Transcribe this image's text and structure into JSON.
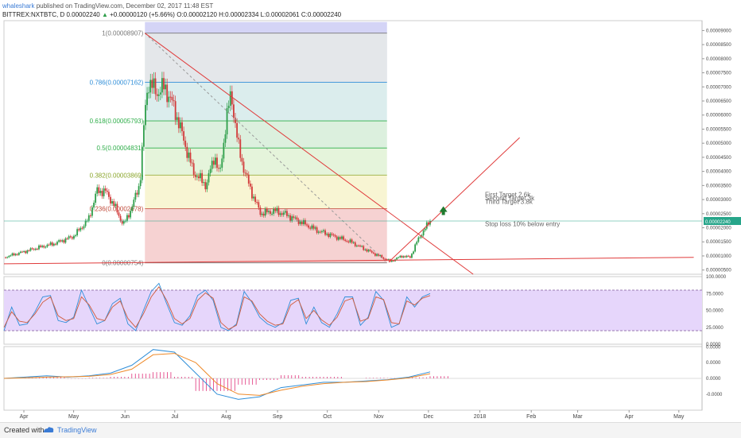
{
  "header": {
    "user": "whaleshark",
    "published": "published on TradingView.com, December 02, 2017 11:48 EST",
    "symbol": "BITTREX:NXTBTC, D",
    "last": "0.00002240",
    "change": "+0.00000120 (+5.66%)",
    "open_label": "O:",
    "open": "0.00002120",
    "high_label": "H:",
    "high": "0.00002334",
    "low_label": "L:",
    "low": "0.00002061",
    "close_label": "C:",
    "close": "0.00002240"
  },
  "footer": {
    "created_with": "Created with",
    "brand": "TradingView"
  },
  "colors": {
    "up": "#2e9e4a",
    "down": "#d23a3a",
    "trendline": "#e03b3b",
    "stoch_k": "#2f8ed8",
    "stoch_d": "#d05a3a",
    "macd": "#2f8ed8",
    "signal": "#ee8a2a",
    "hist": "#e0307a",
    "last_price_tag": "#27a58a"
  },
  "chart_data": [
    {
      "type": "candlestick",
      "title": "",
      "x_ticks": [
        "Apr",
        "May",
        "Jun",
        "Jul",
        "Aug",
        "Sep",
        "Oct",
        "Nov",
        "Dec",
        "2018",
        "Feb",
        "Mar",
        "Apr",
        "May"
      ],
      "y_ticks": [
        "0.00009000",
        "0.00008500",
        "0.00008000",
        "0.00007500",
        "0.00007000",
        "0.00006500",
        "0.00006000",
        "0.00005500",
        "0.00005000",
        "0.00004500",
        "0.00004000",
        "0.00003500",
        "0.00003000",
        "0.00002500",
        "0.00002000",
        "0.00001500",
        "0.00001000",
        "0.00000500"
      ],
      "ylim": [
        3.5e-06,
        9.35e-05
      ],
      "last_price_label": "0.00002240",
      "close_path": [
        [
          "2017-03-20",
          9.5e-06
        ],
        [
          "2017-04-01",
          1.15e-05
        ],
        [
          "2017-04-10",
          1.3e-05
        ],
        [
          "2017-04-20",
          1.45e-05
        ],
        [
          "2017-05-01",
          1.7e-05
        ],
        [
          "2017-05-10",
          2.3e-05
        ],
        [
          "2017-05-15",
          3.3e-05
        ],
        [
          "2017-05-20",
          3.3e-05
        ],
        [
          "2017-05-25",
          2.85e-05
        ],
        [
          "2017-05-31",
          2.1e-05
        ],
        [
          "2017-06-05",
          2.7e-05
        ],
        [
          "2017-06-10",
          3.6e-05
        ],
        [
          "2017-06-13",
          6.1e-05
        ],
        [
          "2017-06-15",
          7.2e-05
        ],
        [
          "2017-06-20",
          6.8e-05
        ],
        [
          "2017-06-25",
          7e-05
        ],
        [
          "2017-07-01",
          6.2e-05
        ],
        [
          "2017-07-05",
          5.4e-05
        ],
        [
          "2017-07-12",
          4e-05
        ],
        [
          "2017-07-20",
          3.5e-05
        ],
        [
          "2017-07-25",
          4.6e-05
        ],
        [
          "2017-07-28",
          3.8e-05
        ],
        [
          "2017-08-01",
          5.8e-05
        ],
        [
          "2017-08-04",
          6.8e-05
        ],
        [
          "2017-08-08",
          5e-05
        ],
        [
          "2017-08-12",
          4e-05
        ],
        [
          "2017-08-18",
          3e-05
        ],
        [
          "2017-08-22",
          2.5e-05
        ],
        [
          "2017-08-30",
          2.6e-05
        ],
        [
          "2017-09-05",
          2.5e-05
        ],
        [
          "2017-09-15",
          2.2e-05
        ],
        [
          "2017-09-25",
          1.9e-05
        ],
        [
          "2017-10-05",
          1.7e-05
        ],
        [
          "2017-10-15",
          1.5e-05
        ],
        [
          "2017-10-25",
          1.2e-05
        ],
        [
          "2017-11-03",
          9.5e-06
        ],
        [
          "2017-11-08",
          8e-06
        ],
        [
          "2017-11-15",
          1e-05
        ],
        [
          "2017-11-20",
          9.5e-06
        ],
        [
          "2017-11-24",
          1.5e-05
        ],
        [
          "2017-11-28",
          1.9e-05
        ],
        [
          "2017-12-02",
          2.24e-05
        ]
      ],
      "fibonacci": [
        {
          "label": "0.786(0.00007162)",
          "value": 7.162e-05,
          "color": "#2f8ed8"
        },
        {
          "label": "0.618(0.00005793)",
          "value": 5.793e-05,
          "color": "#2fae4a"
        },
        {
          "label": "0.5(0.00004831)",
          "value": 4.831e-05,
          "color": "#2fae4a"
        },
        {
          "label": "0.382(0.00003869)",
          "value": 3.869e-05,
          "color": "#8aa52a"
        },
        {
          "label": "0.236(0.00002678)",
          "value": 2.678e-05,
          "color": "#c04a3a"
        },
        {
          "label": "0(0.00000754)",
          "value": 7.54e-06,
          "color": "#777777"
        },
        {
          "label": "1(0.00008907)",
          "value": 8.907e-05,
          "color": "#777777"
        }
      ],
      "annotations": [
        "First Target 2.6k",
        "Second Target 3k",
        "Third Target 3.8k",
        "Stop loss 10% below entry"
      ]
    },
    {
      "type": "line",
      "title": "",
      "y_ticks": [
        "100.0000",
        "75.0000",
        "50.0000",
        "25.0000",
        "0.0000"
      ],
      "ylim": [
        0,
        100
      ],
      "band": [
        20,
        80
      ],
      "series": [
        {
          "values": [
            20,
            55,
            28,
            30,
            48,
            70,
            72,
            35,
            32,
            40,
            80,
            55,
            30,
            35,
            60,
            68,
            30,
            20,
            50,
            78,
            90,
            60,
            32,
            28,
            42,
            72,
            80,
            65,
            25,
            20,
            30,
            78,
            62,
            40,
            30,
            25,
            32,
            65,
            68,
            30,
            55,
            32,
            25,
            45,
            70,
            70,
            28,
            40,
            78,
            65,
            25,
            30,
            70,
            55,
            70,
            75
          ]
        },
        {
          "values": [
            25,
            48,
            34,
            32,
            45,
            62,
            70,
            42,
            35,
            38,
            70,
            58,
            38,
            35,
            55,
            64,
            38,
            25,
            45,
            70,
            85,
            65,
            38,
            30,
            38,
            65,
            76,
            68,
            32,
            22,
            28,
            70,
            64,
            45,
            34,
            28,
            30,
            58,
            66,
            38,
            50,
            36,
            28,
            40,
            64,
            68,
            34,
            38,
            70,
            66,
            32,
            30,
            64,
            58,
            68,
            72
          ]
        }
      ]
    },
    {
      "type": "line",
      "title": "",
      "y_ticks": [
        "0.0000",
        "0.0000",
        "0.0000",
        "-0.0000"
      ],
      "series": [
        {
          "values": [
            0.0,
            0.05,
            0.1,
            0.05,
            0.1,
            0.2,
            0.5,
            1.1,
            1.0,
            0.2,
            -0.6,
            -0.8,
            -0.7,
            -0.35,
            -0.25,
            -0.15,
            -0.15,
            -0.1,
            -0.05,
            0.05,
            0.25
          ]
        },
        {
          "values": [
            0.0,
            0.02,
            0.05,
            0.06,
            0.08,
            0.15,
            0.35,
            0.9,
            0.95,
            0.6,
            -0.2,
            -0.6,
            -0.65,
            -0.45,
            -0.3,
            -0.2,
            -0.15,
            -0.12,
            -0.06,
            0.02,
            0.18
          ]
        }
      ]
    }
  ]
}
